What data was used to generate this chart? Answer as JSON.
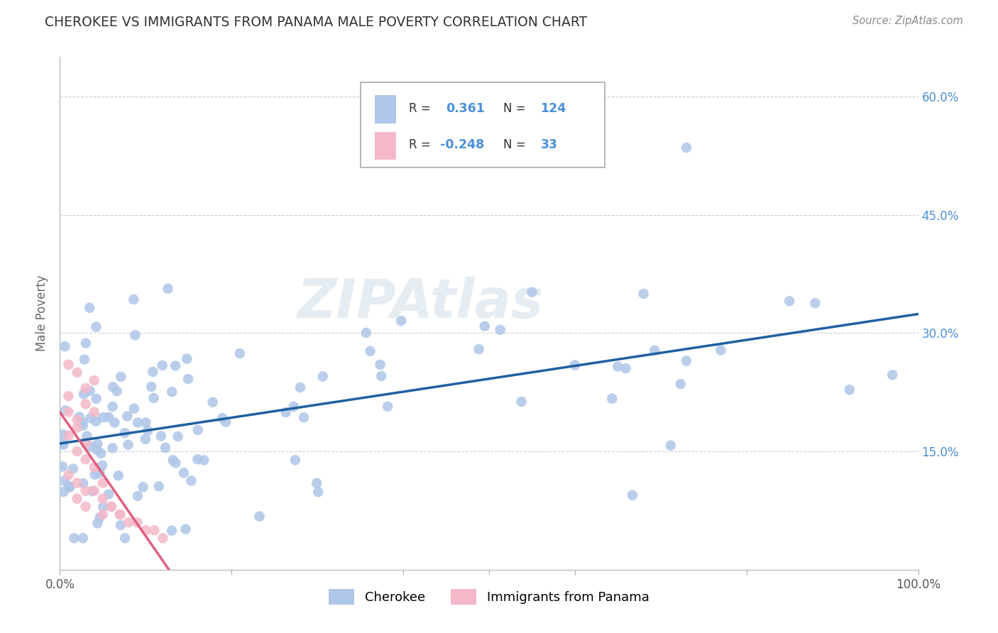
{
  "title": "CHEROKEE VS IMMIGRANTS FROM PANAMA MALE POVERTY CORRELATION CHART",
  "source": "Source: ZipAtlas.com",
  "ylabel": "Male Poverty",
  "xlim": [
    0,
    1.0
  ],
  "ylim": [
    0,
    0.65
  ],
  "cherokee_color": "#aec6e8",
  "panama_color": "#f4b8c8",
  "cherokee_line_color": "#2060a0",
  "panama_line_color": "#e06080",
  "background_color": "#ffffff",
  "grid_color": "#cccccc",
  "cherokee_label": "Cherokee",
  "panama_label": "Immigrants from Panama",
  "r1": "0.361",
  "n1": "124",
  "r2": "-0.248",
  "n2": "33",
  "title_color": "#333333",
  "source_color": "#888888",
  "ytick_color": "#4a90d9",
  "label_color": "#666666"
}
